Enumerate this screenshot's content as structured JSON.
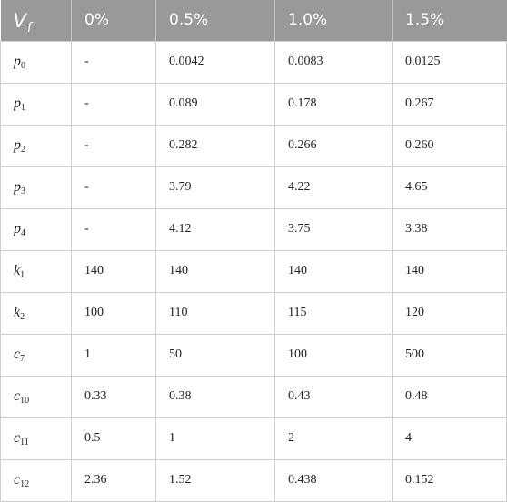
{
  "table": {
    "header": {
      "vf_symbol": "V",
      "vf_subscript": "f",
      "columns": [
        "0%",
        "0.5%",
        "1.0%",
        "1.5%"
      ]
    },
    "rows": [
      {
        "symbol": "p",
        "sub": "0",
        "values": [
          "-",
          "0.0042",
          "0.0083",
          "0.0125"
        ]
      },
      {
        "symbol": "p",
        "sub": "1",
        "values": [
          "-",
          "0.089",
          "0.178",
          "0.267"
        ]
      },
      {
        "symbol": "p",
        "sub": "2",
        "values": [
          "-",
          "0.282",
          "0.266",
          "0.260"
        ]
      },
      {
        "symbol": "p",
        "sub": "3",
        "values": [
          "-",
          "3.79",
          "4.22",
          "4.65"
        ]
      },
      {
        "symbol": "p",
        "sub": "4",
        "values": [
          "-",
          "4.12",
          "3.75",
          "3.38"
        ]
      },
      {
        "symbol": "k",
        "sub": "1",
        "values": [
          "140",
          "140",
          "140",
          "140"
        ]
      },
      {
        "symbol": "k",
        "sub": "2",
        "values": [
          "100",
          "110",
          "115",
          "120"
        ]
      },
      {
        "symbol": "c",
        "sub": "7",
        "values": [
          "1",
          "50",
          "100",
          "500"
        ]
      },
      {
        "symbol": "c",
        "sub": "10",
        "values": [
          "0.33",
          "0.38",
          "0.43",
          "0.48"
        ]
      },
      {
        "symbol": "c",
        "sub": "11",
        "values": [
          "0.5",
          "1",
          "2",
          "4"
        ]
      },
      {
        "symbol": "c",
        "sub": "12",
        "values": [
          "2.36",
          "1.52",
          "0.438",
          "0.152"
        ]
      }
    ]
  }
}
